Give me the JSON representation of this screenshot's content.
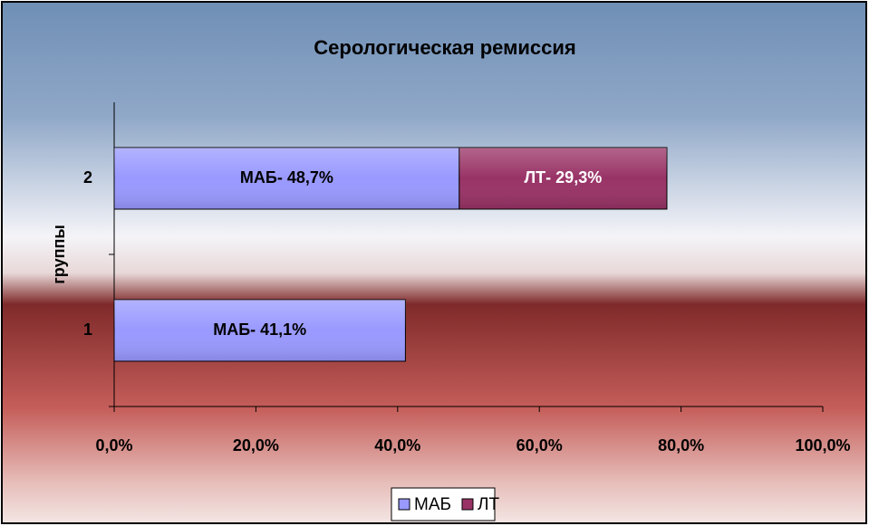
{
  "chart_data": {
    "type": "bar",
    "orientation": "horizontal",
    "stacked": true,
    "title": "Серологическая ремиссия",
    "y_label": "группы",
    "categories": [
      "1",
      "2"
    ],
    "series": [
      {
        "name": "МАБ",
        "color": "#9999ff",
        "values": [
          41.1,
          48.7
        ],
        "value_labels": [
          "МАБ- 41,1%",
          "МАБ- 48,7%"
        ]
      },
      {
        "name": "ЛТ",
        "color": "#993366",
        "values": [
          null,
          29.3
        ],
        "value_labels": [
          null,
          "ЛТ- 29,3%"
        ]
      }
    ],
    "xlim": [
      0,
      100
    ],
    "xticks": [
      {
        "value": 0,
        "label": "0,0%"
      },
      {
        "value": 20,
        "label": "20,0%"
      },
      {
        "value": 40,
        "label": "40,0%"
      },
      {
        "value": 60,
        "label": "60,0%"
      },
      {
        "value": 80,
        "label": "80,0%"
      },
      {
        "value": 100,
        "label": "100,0%"
      }
    ],
    "legend": "bottom"
  }
}
